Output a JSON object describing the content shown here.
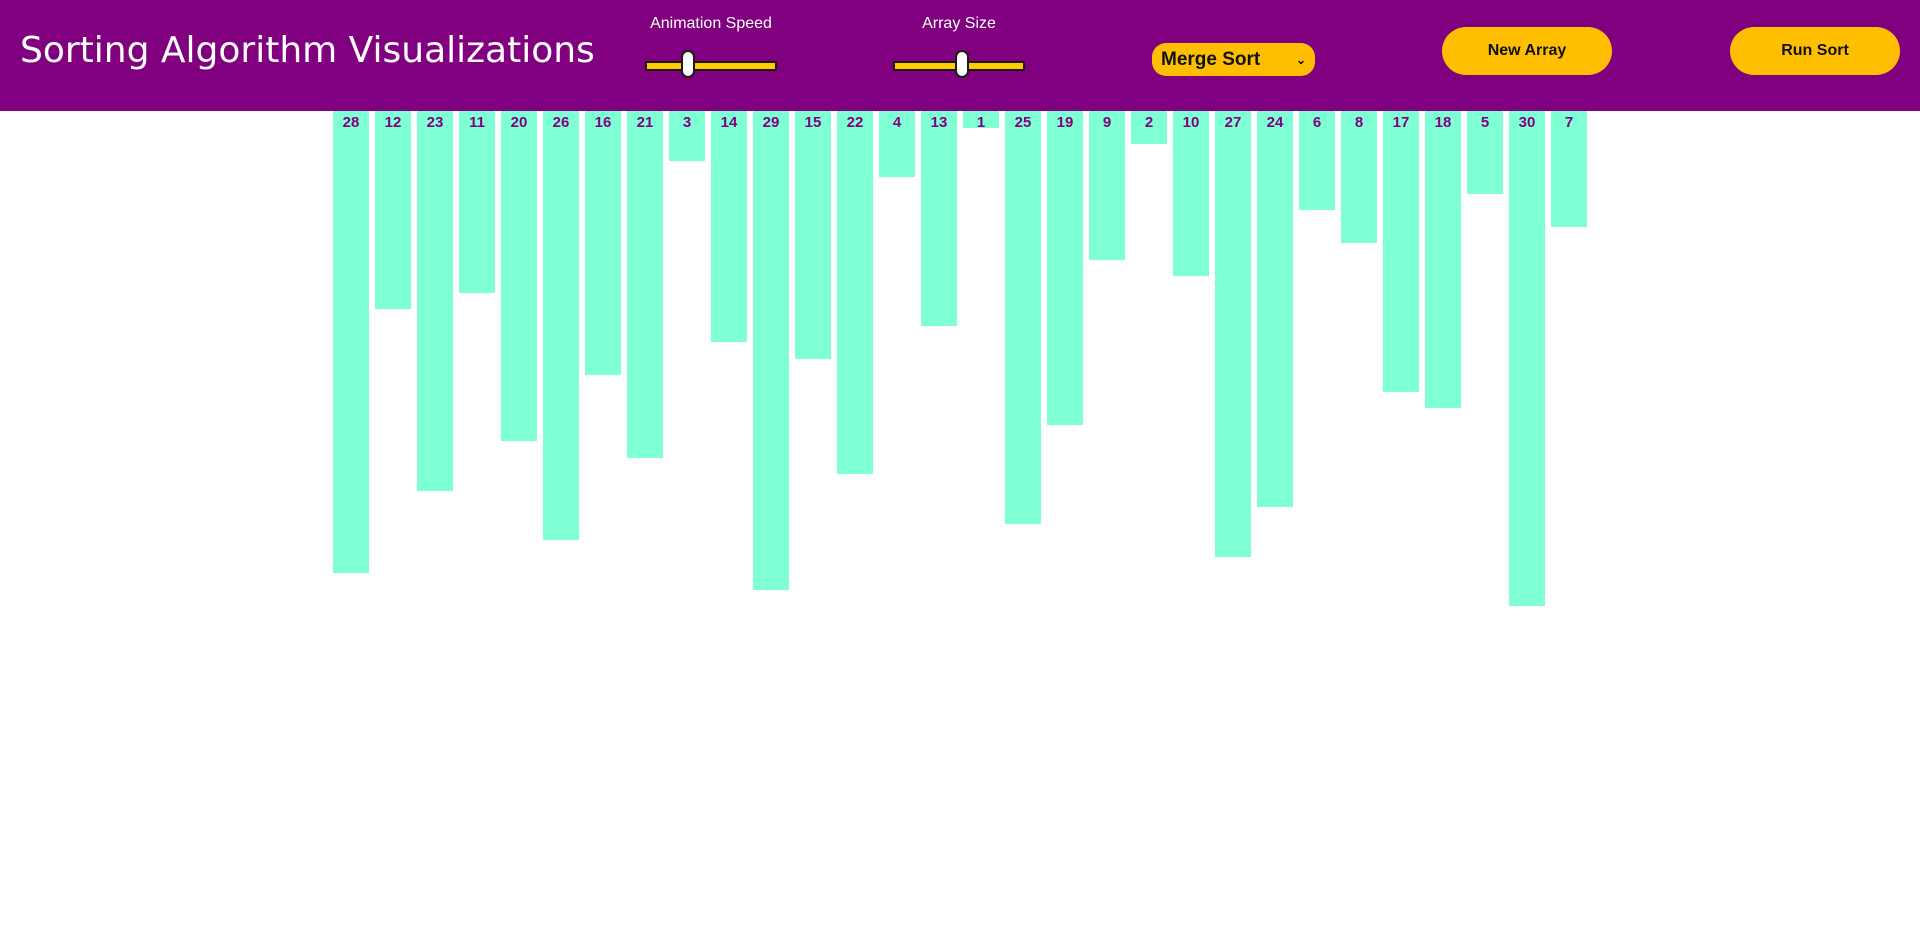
{
  "header": {
    "title": "Sorting Algorithm Visualizations",
    "animation_speed": {
      "label": "Animation Speed",
      "value_fraction": 0.3
    },
    "array_size": {
      "label": "Array Size",
      "value_fraction": 0.53
    },
    "algorithm_select": {
      "selected": "Merge Sort"
    },
    "new_array_label": "New Array",
    "run_sort_label": "Run Sort"
  },
  "colors": {
    "header_bg": "#800080",
    "accent": "#ffbf00",
    "bar": "#7fffd4",
    "bar_label": "#800080"
  },
  "array": [
    28,
    12,
    23,
    11,
    20,
    26,
    16,
    21,
    3,
    14,
    29,
    15,
    22,
    4,
    13,
    1,
    25,
    19,
    9,
    2,
    10,
    27,
    24,
    6,
    8,
    17,
    18,
    5,
    30,
    7
  ]
}
